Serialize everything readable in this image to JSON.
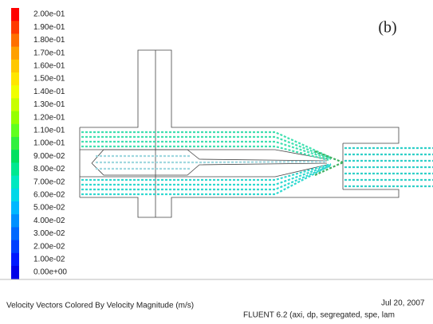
{
  "panel_label": "(b)",
  "colorbar": {
    "labels": [
      "2.00e-01",
      "1.90e-01",
      "1.80e-01",
      "1.70e-01",
      "1.60e-01",
      "1.50e-01",
      "1.40e-01",
      "1.30e-01",
      "1.20e-01",
      "1.10e-01",
      "1.00e-01",
      "9.00e-02",
      "8.00e-02",
      "7.00e-02",
      "6.00e-02",
      "5.00e-02",
      "4.00e-02",
      "3.00e-02",
      "2.00e-02",
      "1.00e-02",
      "0.00e+00"
    ],
    "colors": [
      "#ff0000",
      "#ff3a00",
      "#ff7000",
      "#ffa000",
      "#ffc800",
      "#ffe600",
      "#f0ff00",
      "#c8ff00",
      "#96ff00",
      "#60ff20",
      "#30f040",
      "#00e060",
      "#00e890",
      "#00e8c0",
      "#00d8e8",
      "#00b8ff",
      "#0090ff",
      "#0068ff",
      "#0040ff",
      "#0018ff",
      "#0000e8"
    ]
  },
  "footer": {
    "title": "Velocity Vectors Colored By Velocity Magnitude (m/s)",
    "date": "Jul 20, 2007",
    "solver": "FLUENT 6.2 (axi, dp, segregated, spe, lam"
  }
}
